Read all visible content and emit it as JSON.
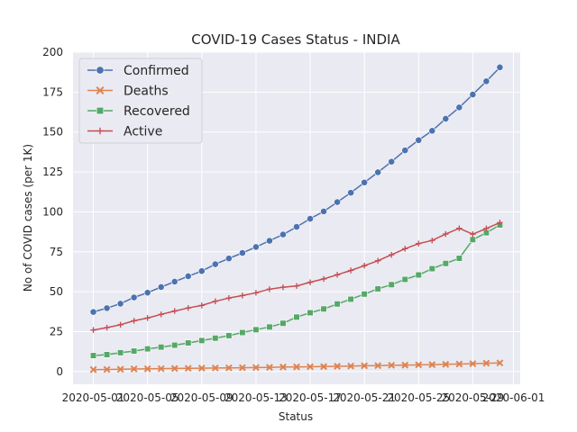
{
  "chart_data": {
    "type": "line",
    "title": "COVID-19 Cases Status - INDIA",
    "xlabel": "Status",
    "ylabel": "No of COVID cases (per 1K)",
    "ylim": [
      -8,
      200
    ],
    "yticks": [
      0,
      25,
      50,
      75,
      100,
      125,
      150,
      175,
      200
    ],
    "xticks": [
      "2020-05-01",
      "2020-05-05",
      "2020-05-09",
      "2020-05-13",
      "2020-05-17",
      "2020-05-21",
      "2020-05-25",
      "2020-05-29",
      "2020-06-01"
    ],
    "x_dates": [
      "2020-05-01",
      "2020-05-02",
      "2020-05-03",
      "2020-05-04",
      "2020-05-05",
      "2020-05-06",
      "2020-05-07",
      "2020-05-08",
      "2020-05-09",
      "2020-05-10",
      "2020-05-11",
      "2020-05-12",
      "2020-05-13",
      "2020-05-14",
      "2020-05-15",
      "2020-05-16",
      "2020-05-17",
      "2020-05-18",
      "2020-05-19",
      "2020-05-20",
      "2020-05-21",
      "2020-05-22",
      "2020-05-23",
      "2020-05-24",
      "2020-05-25",
      "2020-05-26",
      "2020-05-27",
      "2020-05-28",
      "2020-05-29",
      "2020-05-30",
      "2020-05-31"
    ],
    "grid": true,
    "legend_position": "top-left",
    "series": [
      {
        "name": "Confirmed",
        "color": "#4c72b0",
        "marker": "circle",
        "values": [
          37.3,
          39.7,
          42.5,
          46.4,
          49.4,
          52.9,
          56.3,
          59.7,
          62.9,
          67.2,
          70.8,
          74.3,
          78.0,
          81.9,
          85.8,
          90.6,
          95.7,
          100.3,
          106.1,
          112.0,
          118.4,
          124.8,
          131.4,
          138.5,
          144.9,
          150.8,
          158.3,
          165.4,
          173.5,
          181.8,
          190.5
        ]
      },
      {
        "name": "Deaths",
        "color": "#dd8452",
        "marker": "x",
        "values": [
          1.2,
          1.3,
          1.4,
          1.6,
          1.7,
          1.8,
          1.9,
          2.0,
          2.1,
          2.2,
          2.3,
          2.4,
          2.5,
          2.6,
          2.8,
          2.9,
          3.0,
          3.1,
          3.3,
          3.4,
          3.6,
          3.7,
          3.9,
          4.0,
          4.2,
          4.3,
          4.5,
          4.7,
          4.9,
          5.2,
          5.4
        ]
      },
      {
        "name": "Recovered",
        "color": "#55a868",
        "marker": "square",
        "values": [
          10.0,
          10.6,
          11.8,
          12.8,
          14.2,
          15.3,
          16.5,
          17.9,
          19.4,
          20.9,
          22.5,
          24.4,
          26.2,
          27.9,
          30.2,
          34.1,
          36.8,
          39.2,
          42.3,
          45.3,
          48.5,
          51.8,
          54.4,
          57.7,
          60.5,
          64.4,
          67.7,
          70.9,
          82.6,
          86.9,
          91.8
        ]
      },
      {
        "name": "Active",
        "color": "#c44e52",
        "marker": "plus",
        "values": [
          26.0,
          27.5,
          29.3,
          31.8,
          33.5,
          35.8,
          37.9,
          39.8,
          41.4,
          44.0,
          46.0,
          47.6,
          49.3,
          51.6,
          52.8,
          53.6,
          55.9,
          58.0,
          60.6,
          63.3,
          66.3,
          69.4,
          73.1,
          76.9,
          80.1,
          82.1,
          86.1,
          89.7,
          86.0,
          89.6,
          93.3
        ]
      }
    ]
  }
}
